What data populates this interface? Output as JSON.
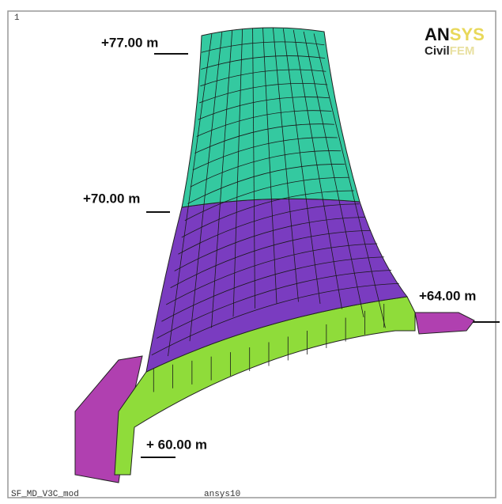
{
  "window": {
    "corner_number": "1",
    "model_name": "SF_MD_V3C_mod",
    "solver": "ansys10"
  },
  "logo": {
    "brand_bold": "AN",
    "brand_light": "SYS",
    "product_bold": "Civil",
    "product_light": "FEM"
  },
  "labels": {
    "level_top": "+77.00 m",
    "level_upper": "+70.00 m",
    "level_right": "+64.00 m",
    "level_base": "+ 60.00 m"
  }
}
